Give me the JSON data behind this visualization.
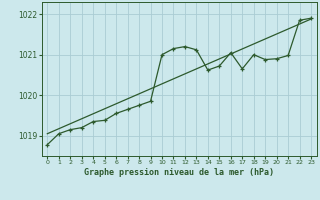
{
  "title": "Graphe pression niveau de la mer (hPa)",
  "bg_color": "#cce8ec",
  "grid_color": "#aaccd4",
  "line_color": "#2d5a2d",
  "xlim": [
    -0.5,
    23.5
  ],
  "ylim": [
    1018.5,
    1022.3
  ],
  "yticks": [
    1019,
    1020,
    1021,
    1022
  ],
  "xticks": [
    0,
    1,
    2,
    3,
    4,
    5,
    6,
    7,
    8,
    9,
    10,
    11,
    12,
    13,
    14,
    15,
    16,
    17,
    18,
    19,
    20,
    21,
    22,
    23
  ],
  "main_data_x": [
    0,
    1,
    2,
    3,
    4,
    5,
    6,
    7,
    8,
    9,
    10,
    11,
    12,
    13,
    14,
    15,
    16,
    17,
    18,
    19,
    20,
    21,
    22,
    23
  ],
  "main_data_y": [
    1018.78,
    1019.05,
    1019.15,
    1019.2,
    1019.35,
    1019.38,
    1019.55,
    1019.65,
    1019.75,
    1019.85,
    1021.0,
    1021.15,
    1021.2,
    1021.12,
    1020.62,
    1020.72,
    1021.05,
    1020.65,
    1021.0,
    1020.88,
    1020.9,
    1020.98,
    1021.85,
    1021.9
  ],
  "trend_x": [
    0,
    23
  ],
  "trend_y": [
    1019.05,
    1021.88
  ]
}
